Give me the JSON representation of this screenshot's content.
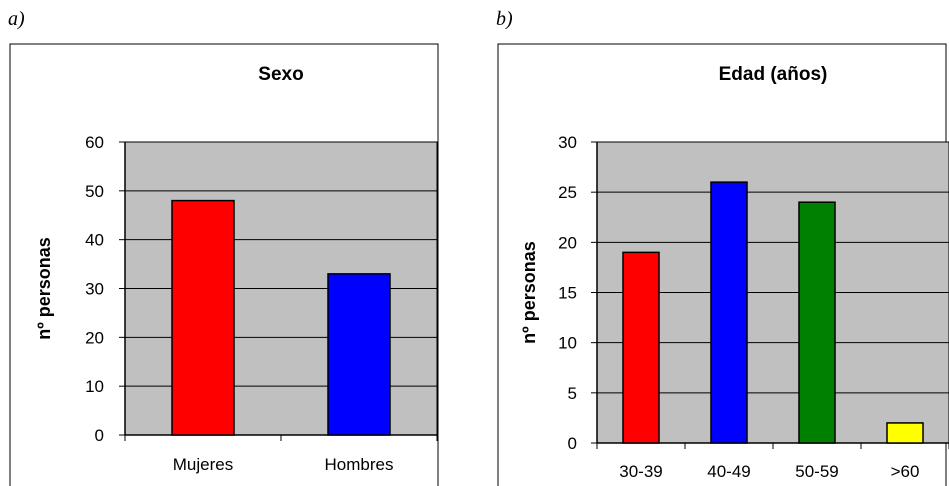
{
  "panels": [
    "a)",
    "b)"
  ],
  "chart_data": [
    {
      "type": "bar",
      "title": "Sexo",
      "xlabel": "",
      "ylabel": "nº personas",
      "categories": [
        "Mujeres",
        "Hombres"
      ],
      "values": [
        48,
        33
      ],
      "colors": [
        "#ff0000",
        "#0000ff"
      ],
      "ylim": [
        0,
        60
      ],
      "yticks": [
        0,
        10,
        20,
        30,
        40,
        50,
        60
      ],
      "grid": true,
      "plot_background": "#c0c0c0"
    },
    {
      "type": "bar",
      "title": "Edad (años)",
      "xlabel": "",
      "ylabel": "nº personas",
      "categories": [
        "30-39",
        "40-49",
        "50-59",
        ">60"
      ],
      "values": [
        19,
        26,
        24,
        2
      ],
      "colors": [
        "#ff0000",
        "#0000ff",
        "#008000",
        "#ffff00"
      ],
      "ylim": [
        0,
        30
      ],
      "yticks": [
        0,
        5,
        10,
        15,
        20,
        25,
        30
      ],
      "grid": true,
      "plot_background": "#c0c0c0"
    }
  ]
}
